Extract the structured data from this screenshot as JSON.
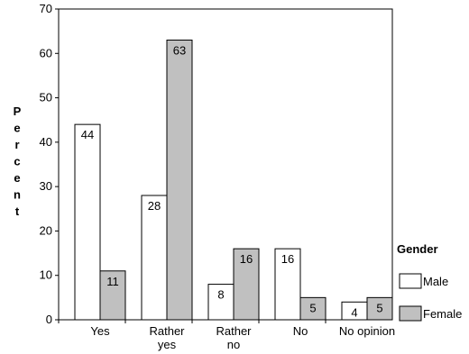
{
  "chart_data": {
    "type": "bar",
    "ylabel": "Percent",
    "xlabel": "",
    "ylim": [
      0,
      70
    ],
    "y_ticks": [
      0,
      10,
      20,
      30,
      40,
      50,
      60,
      70
    ],
    "grid": false,
    "legend_position": "right",
    "legend_title": "Gender",
    "categories": [
      {
        "lines": [
          "Yes"
        ]
      },
      {
        "lines": [
          "Rather",
          "yes"
        ]
      },
      {
        "lines": [
          "Rather",
          "no"
        ]
      },
      {
        "lines": [
          "No"
        ]
      },
      {
        "lines": [
          "No opinion"
        ]
      }
    ],
    "series": [
      {
        "name": "Male",
        "color": "#ffffff",
        "values": [
          44,
          28,
          8,
          16,
          4
        ]
      },
      {
        "name": "Female",
        "color": "#c0c0c0",
        "values": [
          11,
          63,
          16,
          5,
          5
        ]
      }
    ]
  }
}
